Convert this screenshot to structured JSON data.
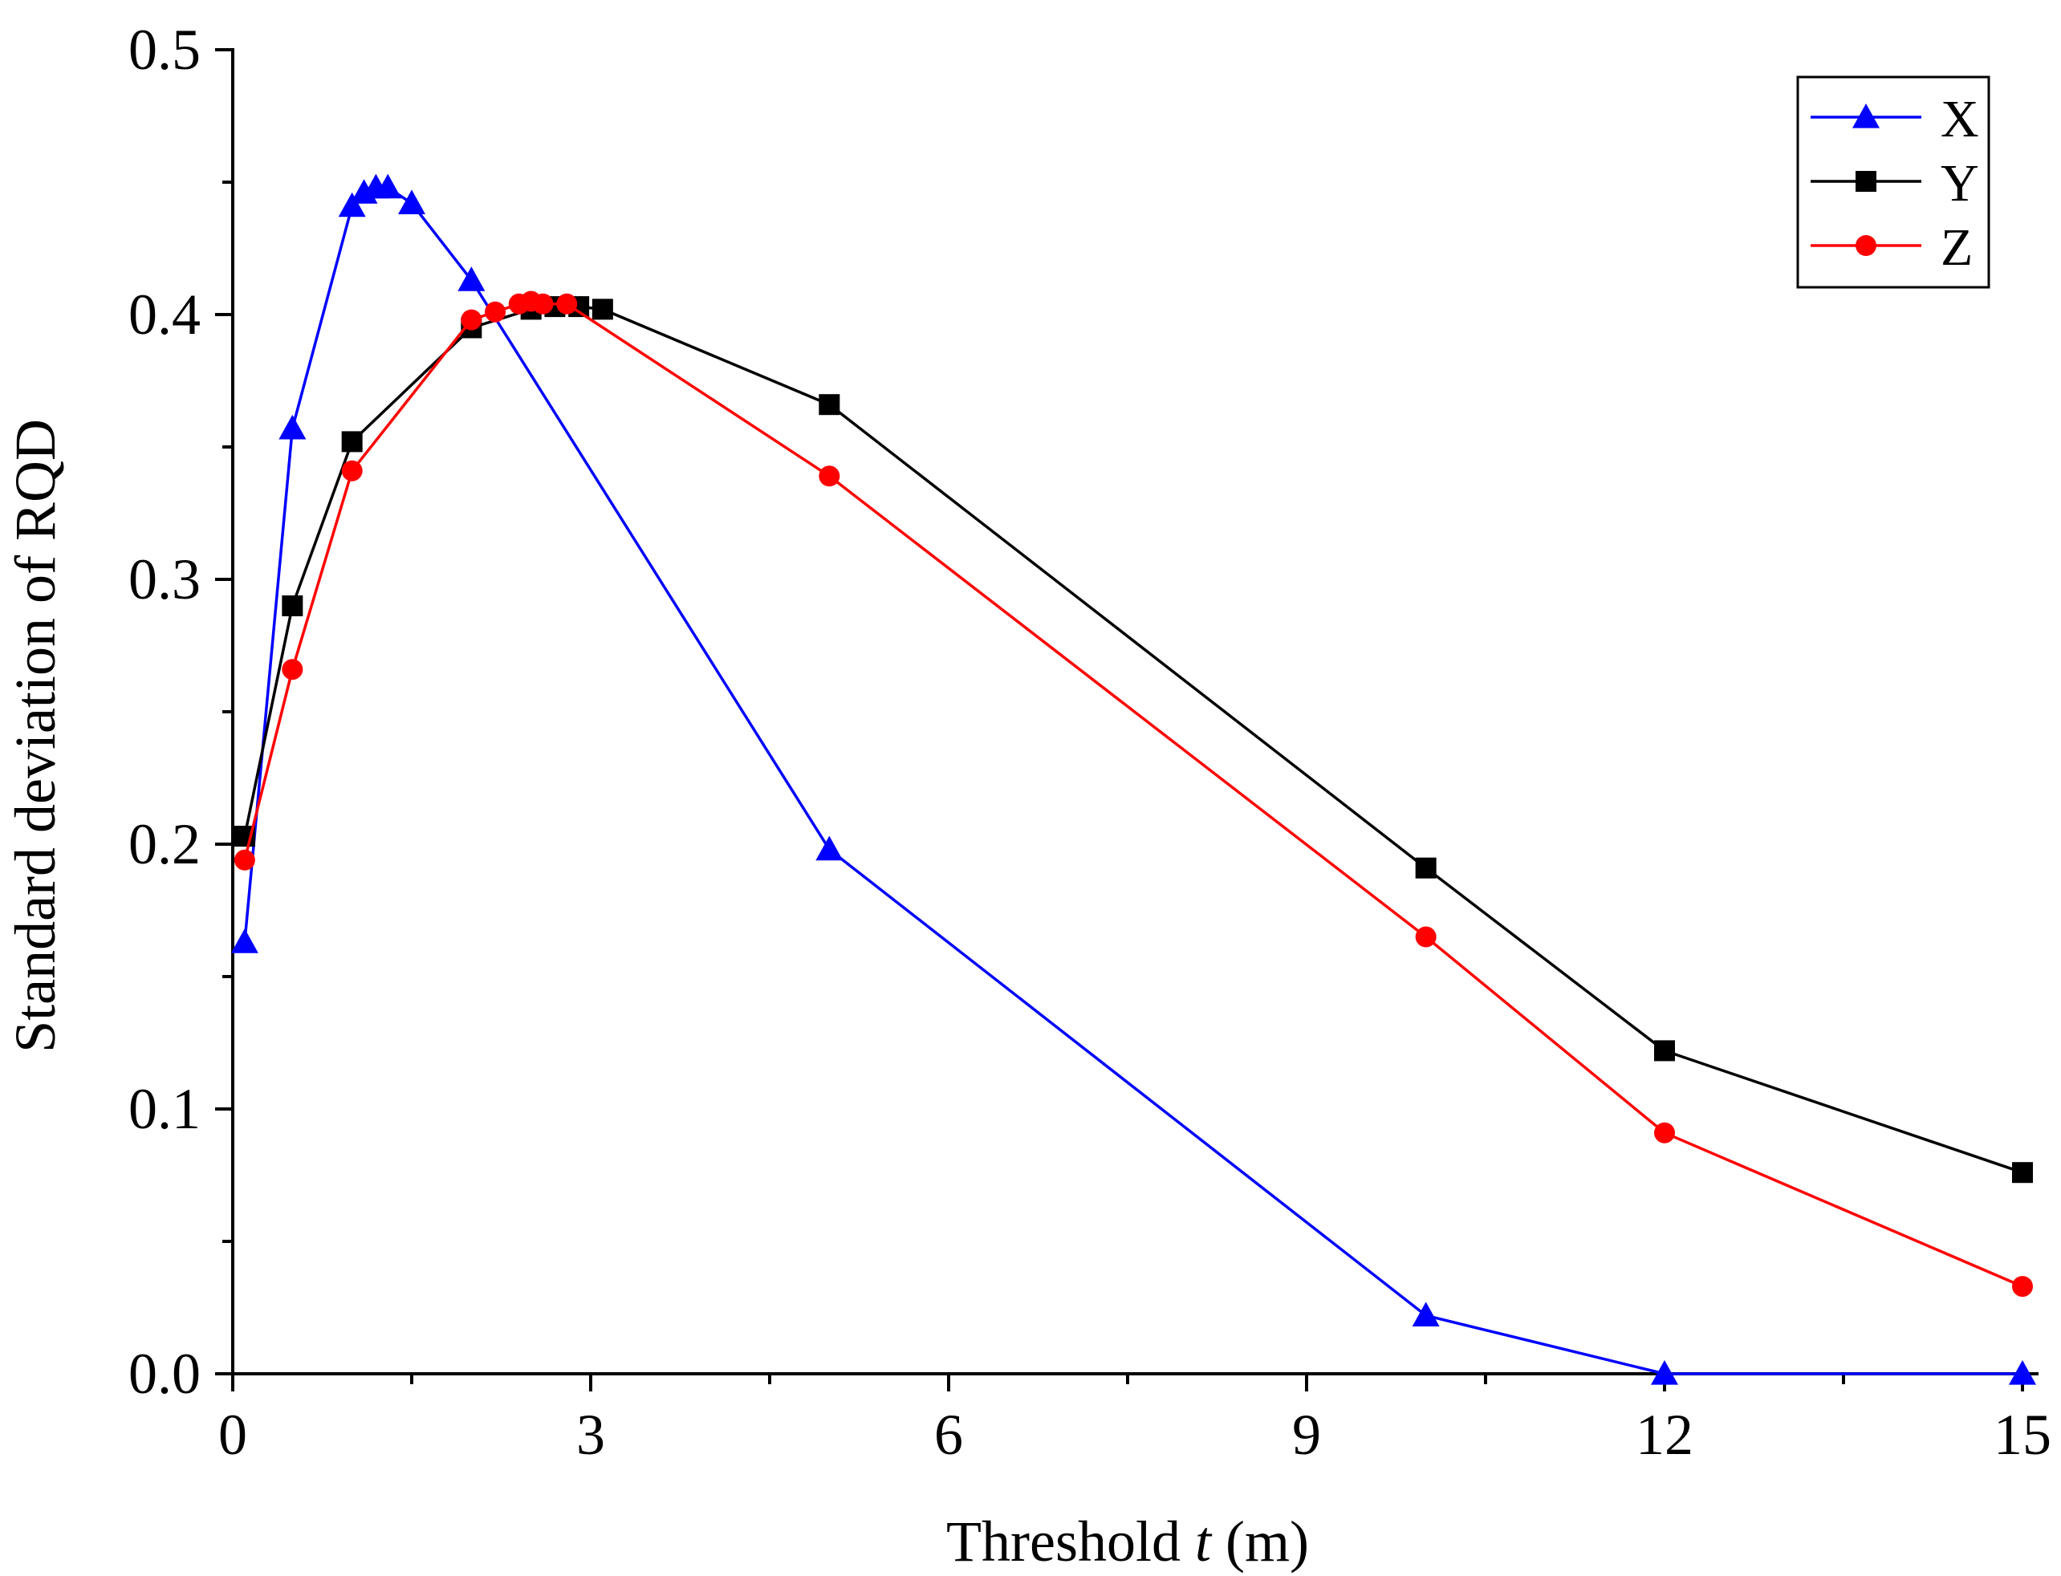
{
  "chart_data": {
    "type": "line",
    "title": "",
    "xlabel_prefix": "Threshold ",
    "xlabel_var": "t",
    "xlabel_suffix": " (m)",
    "ylabel": "Standard deviation of RQD",
    "xlim": [
      0,
      15
    ],
    "ylim": [
      0,
      0.5
    ],
    "xticks": [
      0,
      3,
      6,
      9,
      12,
      15
    ],
    "xtick_labels": [
      "0",
      "3",
      "6",
      "9",
      "12",
      "15"
    ],
    "xminor": [
      1.5,
      4.5,
      7.5,
      10.5,
      13.5
    ],
    "yticks": [
      0,
      0.1,
      0.2,
      0.3,
      0.4,
      0.5
    ],
    "ytick_labels": [
      "0.0",
      "0.1",
      "0.2",
      "0.3",
      "0.4",
      "0.5"
    ],
    "yminor": [
      0.05,
      0.15,
      0.25,
      0.35,
      0.45
    ],
    "grid": false,
    "legend_position": "top-right",
    "series": [
      {
        "name": "X",
        "color": "#0000ff",
        "marker": "triangle",
        "x": [
          0.1,
          0.5,
          1.0,
          1.1,
          1.2,
          1.3,
          1.5,
          2.0,
          5.0,
          10.0,
          12.0,
          15.0
        ],
        "y": [
          0.163,
          0.357,
          0.441,
          0.446,
          0.448,
          0.448,
          0.442,
          0.413,
          0.198,
          0.022,
          0.0,
          0.0
        ]
      },
      {
        "name": "Y",
        "color": "#000000",
        "marker": "square",
        "x": [
          0.1,
          0.5,
          1.0,
          2.0,
          2.5,
          2.7,
          2.9,
          3.1,
          5.0,
          10.0,
          12.0,
          15.0
        ],
        "y": [
          0.203,
          0.29,
          0.352,
          0.395,
          0.402,
          0.403,
          0.403,
          0.402,
          0.366,
          0.191,
          0.122,
          0.076
        ]
      },
      {
        "name": "Z",
        "color": "#ff0000",
        "marker": "circle",
        "x": [
          0.1,
          0.5,
          1.0,
          2.0,
          2.2,
          2.4,
          2.5,
          2.6,
          2.8,
          5.0,
          10.0,
          12.0,
          15.0
        ],
        "y": [
          0.194,
          0.266,
          0.341,
          0.398,
          0.401,
          0.404,
          0.405,
          0.404,
          0.404,
          0.339,
          0.165,
          0.091,
          0.033
        ]
      }
    ]
  }
}
